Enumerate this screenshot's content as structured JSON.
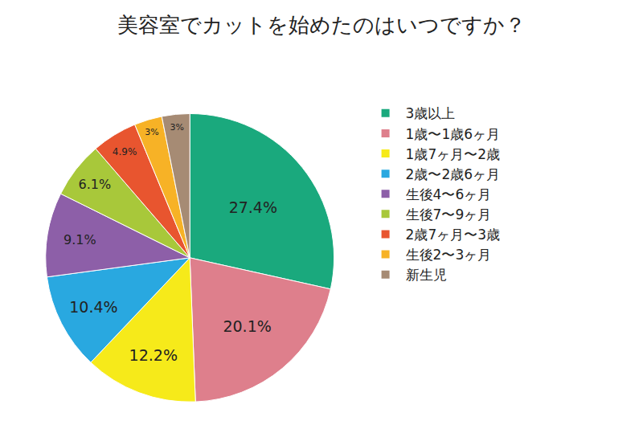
{
  "chart_data": {
    "type": "pie",
    "title": "美容室でカットを始めたのはいつですか？",
    "categories": [
      "3歳以上",
      "1歳〜1歳6ヶ月",
      "1歳7ヶ月〜2歳",
      "2歳〜2歳6ヶ月",
      "生後4〜6ヶ月",
      "生後7〜9ヶ月",
      "2歳7ヶ月〜3歳",
      "生後2〜3ヶ月",
      "新生児"
    ],
    "values": [
      27.4,
      20.1,
      12.2,
      10.4,
      9.1,
      6.1,
      4.9,
      3,
      3
    ],
    "value_labels": [
      "27.4%",
      "20.1%",
      "12.2%",
      "10.4%",
      "9.1%",
      "6.1%",
      "4.9%",
      "3%",
      "3%"
    ],
    "colors": [
      "#1aa97d",
      "#de7f8c",
      "#f6ea1a",
      "#29a8e0",
      "#8d5fa8",
      "#a8c83a",
      "#e8552f",
      "#f7b226",
      "#a68b74"
    ],
    "data_labels": true,
    "legend": "right"
  }
}
